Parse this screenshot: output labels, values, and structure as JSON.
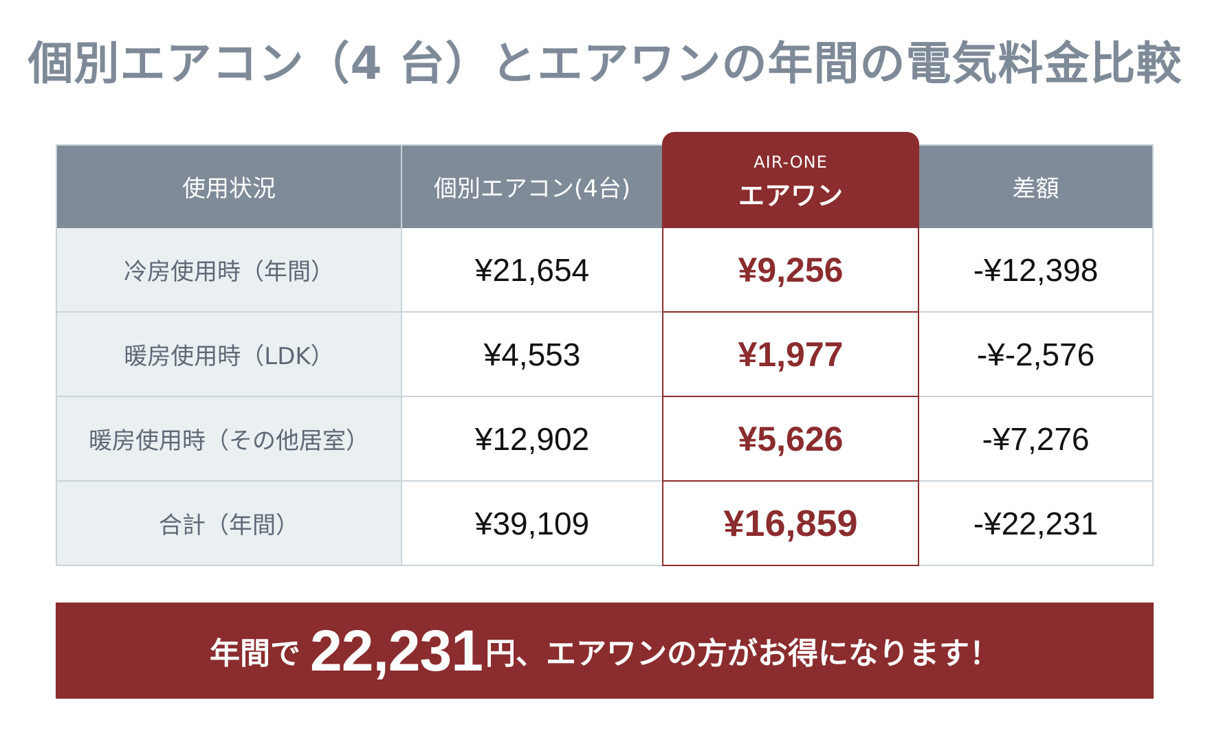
{
  "title": "個別エアコン（4 台）とエアワンの年間の電気料金比較",
  "colors": {
    "header_gray": "#7F8B99",
    "accent_red": "#8B2C2E",
    "label_bg": "#EAF0F1",
    "border": "#C9D3DA",
    "title_gray": "#7E8A98"
  },
  "table": {
    "headers": {
      "label": "使用状況",
      "individual": "個別エアコン(4台)",
      "airone_en": "AIR-ONE",
      "airone_ja": "エアワン",
      "difference": "差額"
    },
    "rows": [
      {
        "label": "冷房使用時（年間）",
        "individual": "¥21,654",
        "airone": "¥9,256",
        "difference": "-¥12,398"
      },
      {
        "label": "暖房使用時（LDK）",
        "individual": "¥4,553",
        "airone": "¥1,977",
        "difference": "-¥-2,576"
      },
      {
        "label": "暖房使用時（その他居室）",
        "individual": "¥12,902",
        "airone": "¥5,626",
        "difference": "-¥7,276"
      },
      {
        "label": "合計（年間）",
        "individual": "¥39,109",
        "airone": "¥16,859",
        "difference": "-¥22,231"
      }
    ]
  },
  "banner": {
    "prefix": "年間で",
    "amount": "22,231",
    "suffix": "円、エアワンの方がお得になります！"
  }
}
